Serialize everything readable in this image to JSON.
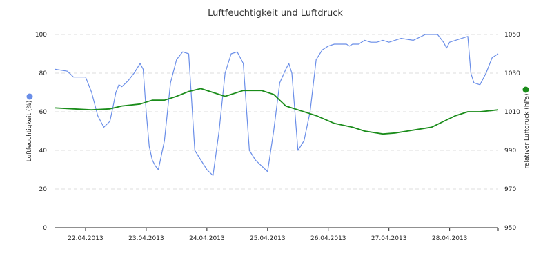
{
  "chart_data": {
    "type": "line",
    "title": "Luftfeuchtigkeit und Luftdruck",
    "x_labels": [
      "22.04.2013",
      "23.04.2013",
      "24.04.2013",
      "25.04.2013",
      "26.04.2013",
      "27.04.2013",
      "28.04.2013"
    ],
    "xlim": [
      21.5,
      28.8
    ],
    "y_left": {
      "label": "Luftfeuchtigkeit (%)",
      "min": 0,
      "max": 100,
      "ticks": [
        "0",
        "20",
        "40",
        "60",
        "80",
        "100"
      ]
    },
    "y_right": {
      "label": "relativer Luftdruck (hPa)",
      "min": 950,
      "max": 1050,
      "ticks": [
        "950",
        "970",
        "990",
        "1010",
        "1030",
        "1050"
      ]
    },
    "grid": true,
    "legend": "side markers",
    "series": [
      {
        "name": "",
        "axis": "left",
        "color": "#6a8ee8",
        "x": [
          21.5,
          21.7,
          21.8,
          22.0,
          22.1,
          22.2,
          22.3,
          22.4,
          22.45,
          22.5,
          22.55,
          22.6,
          22.7,
          22.8,
          22.9,
          22.95,
          23.0,
          23.05,
          23.1,
          23.15,
          23.2,
          23.3,
          23.4,
          23.5,
          23.6,
          23.7,
          23.8,
          23.9,
          24.0,
          24.1,
          24.2,
          24.3,
          24.35,
          24.4,
          24.5,
          24.6,
          24.7,
          24.8,
          24.9,
          25.0,
          25.1,
          25.2,
          25.3,
          25.35,
          25.4,
          25.5,
          25.6,
          25.7,
          25.8,
          25.9,
          26.0,
          26.1,
          26.2,
          26.3,
          26.35,
          26.4,
          26.45,
          26.5,
          26.6,
          26.7,
          26.8,
          26.9,
          27.0,
          27.2,
          27.4,
          27.6,
          27.8,
          27.9,
          27.95,
          28.0,
          28.2,
          28.3,
          28.35,
          28.4,
          28.5,
          28.6,
          28.7,
          28.8
        ],
        "values": [
          82,
          81,
          78,
          78,
          70,
          58,
          52,
          55,
          62,
          70,
          74,
          73,
          76,
          80,
          85,
          82,
          60,
          42,
          35,
          32,
          30,
          45,
          75,
          87,
          91,
          90,
          40,
          35,
          30,
          27,
          50,
          80,
          85,
          90,
          91,
          85,
          40,
          35,
          32,
          29,
          50,
          75,
          82,
          85,
          80,
          40,
          45,
          60,
          87,
          92,
          94,
          95,
          95,
          95,
          94,
          95,
          95,
          95,
          97,
          96,
          96,
          97,
          96,
          98,
          97,
          100,
          100,
          96,
          93,
          96,
          98,
          99,
          80,
          75,
          74,
          80,
          88,
          90
        ]
      },
      {
        "name": "",
        "axis": "right",
        "color": "#1a8c1a",
        "x": [
          21.5,
          21.8,
          22.1,
          22.4,
          22.6,
          22.9,
          23.1,
          23.3,
          23.5,
          23.7,
          23.9,
          24.1,
          24.3,
          24.6,
          24.9,
          25.1,
          25.3,
          25.5,
          25.8,
          26.1,
          26.4,
          26.6,
          26.9,
          27.1,
          27.3,
          27.5,
          27.7,
          27.9,
          28.1,
          28.3,
          28.5,
          28.8
        ],
        "values": [
          1012,
          1011.5,
          1011,
          1011.5,
          1013,
          1014,
          1016,
          1016,
          1018,
          1020.5,
          1022,
          1020,
          1018,
          1021,
          1021,
          1019,
          1013,
          1011,
          1008,
          1004,
          1002,
          1000,
          998.5,
          999,
          1000,
          1001,
          1002,
          1005,
          1008,
          1010,
          1010,
          1011
        ]
      }
    ]
  }
}
